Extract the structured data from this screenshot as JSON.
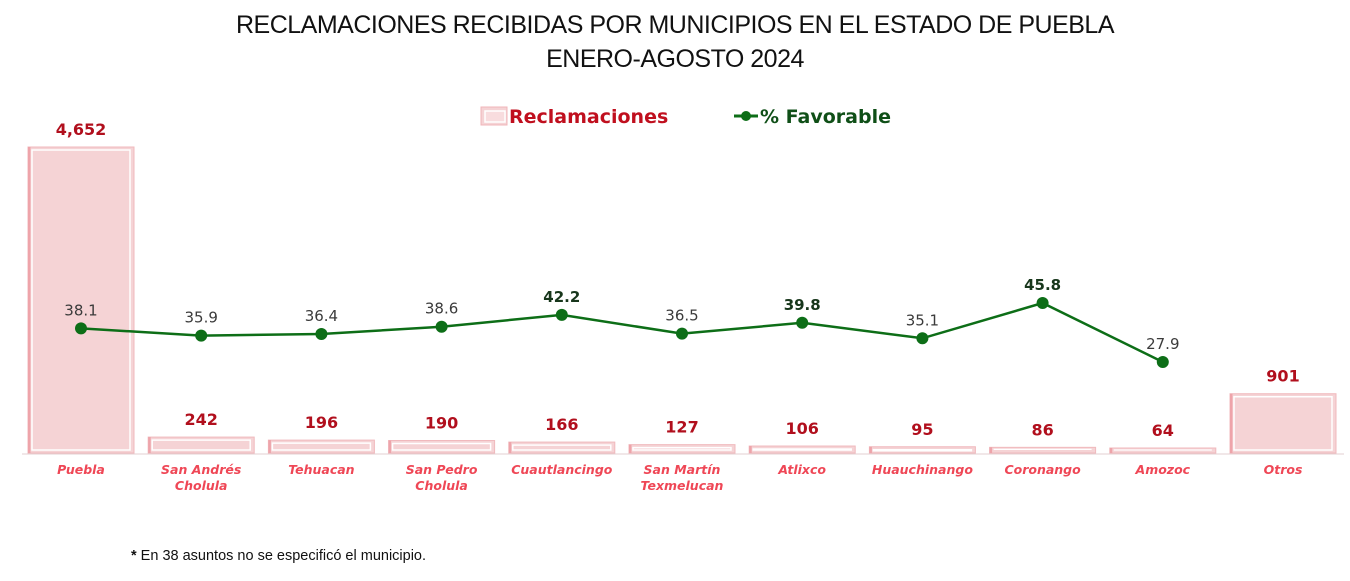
{
  "chart_data": {
    "type": "bar+line",
    "title": "RECLAMACIONES RECIBIDAS POR MUNICIPIOS EN EL ESTADO DE PUEBLA",
    "subtitle": "ENERO-AGOSTO 2024",
    "categories": [
      [
        "Puebla"
      ],
      [
        "San Andrés",
        "Cholula"
      ],
      [
        "Tehuacan"
      ],
      [
        "San Pedro",
        "Cholula"
      ],
      [
        "Cuautlancingo"
      ],
      [
        "San Martín",
        "Texmelucan"
      ],
      [
        "Atlixco"
      ],
      [
        "Huauchinango"
      ],
      [
        "Coronango"
      ],
      [
        "Amozoc"
      ],
      [
        "Otros"
      ]
    ],
    "series": [
      {
        "name": "Reclamaciones",
        "type": "bar",
        "color": "#f5d3d5",
        "values": [
          4652,
          242,
          196,
          190,
          166,
          127,
          106,
          95,
          86,
          64,
          901
        ],
        "labels": [
          "4,652",
          "242",
          "196",
          "190",
          "166",
          "127",
          "106",
          "95",
          "86",
          "64",
          "901"
        ]
      },
      {
        "name": "% Favorable",
        "type": "line",
        "color": "#0d6e17",
        "values": [
          38.1,
          35.9,
          36.4,
          38.6,
          42.2,
          36.5,
          39.8,
          35.1,
          45.8,
          27.9,
          null
        ],
        "labels": [
          "38.1",
          "35.9",
          "36.4",
          "38.6",
          "42.2",
          "36.5",
          "39.8",
          "35.1",
          "45.8",
          "27.9",
          null
        ],
        "bold_labels": [
          false,
          false,
          false,
          false,
          true,
          false,
          true,
          false,
          true,
          false,
          false
        ]
      }
    ],
    "legend": {
      "position": "top-center",
      "entries": [
        "Reclamaciones",
        "% Favorable"
      ]
    },
    "grid": false,
    "footnote": {
      "marker": "*",
      "text": " En 38 asuntos no se especificó el municipio."
    }
  }
}
